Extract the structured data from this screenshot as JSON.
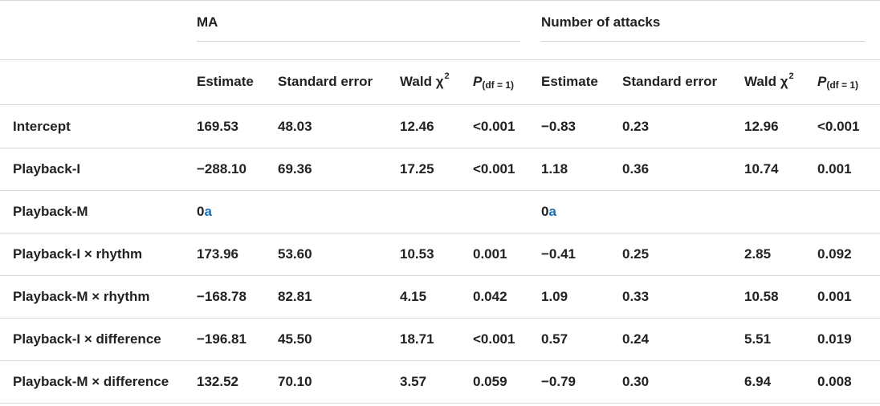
{
  "groups": {
    "ma": "MA",
    "attacks": "Number of attacks"
  },
  "columns": {
    "estimate": "Estimate",
    "se": "Standard error",
    "wald": "Wald χ",
    "wald_sup": "2",
    "p": "P",
    "p_sub": "(df = 1)"
  },
  "footnote_mark": "a",
  "rows": [
    {
      "label": "Intercept",
      "ma": [
        "169.53",
        "48.03",
        "12.46",
        "<0.001"
      ],
      "att": [
        "−0.83",
        "0.23",
        "12.96",
        "<0.001"
      ]
    },
    {
      "label": "Playback-I",
      "ma": [
        "−288.10",
        "69.36",
        "17.25",
        "<0.001"
      ],
      "att": [
        "1.18",
        "0.36",
        "10.74",
        "0.001"
      ]
    },
    {
      "label": "Playback-M",
      "ma": [
        "0",
        "",
        "",
        ""
      ],
      "att": [
        "0",
        "",
        "",
        ""
      ]
    },
    {
      "label": "Playback-I × rhythm",
      "ma": [
        "173.96",
        "53.60",
        "10.53",
        "0.001"
      ],
      "att": [
        "−0.41",
        "0.25",
        "2.85",
        "0.092"
      ]
    },
    {
      "label": "Playback-M × rhythm",
      "ma": [
        "−168.78",
        "82.81",
        "4.15",
        "0.042"
      ],
      "att": [
        "1.09",
        "0.33",
        "10.58",
        "0.001"
      ]
    },
    {
      "label": "Playback-I × difference",
      "ma": [
        "−196.81",
        "45.50",
        "18.71",
        "<0.001"
      ],
      "att": [
        "0.57",
        "0.24",
        "5.51",
        "0.019"
      ]
    },
    {
      "label": "Playback-M × difference",
      "ma": [
        "132.52",
        "70.10",
        "3.57",
        "0.059"
      ],
      "att": [
        "−0.79",
        "0.30",
        "6.94",
        "0.008"
      ]
    }
  ]
}
